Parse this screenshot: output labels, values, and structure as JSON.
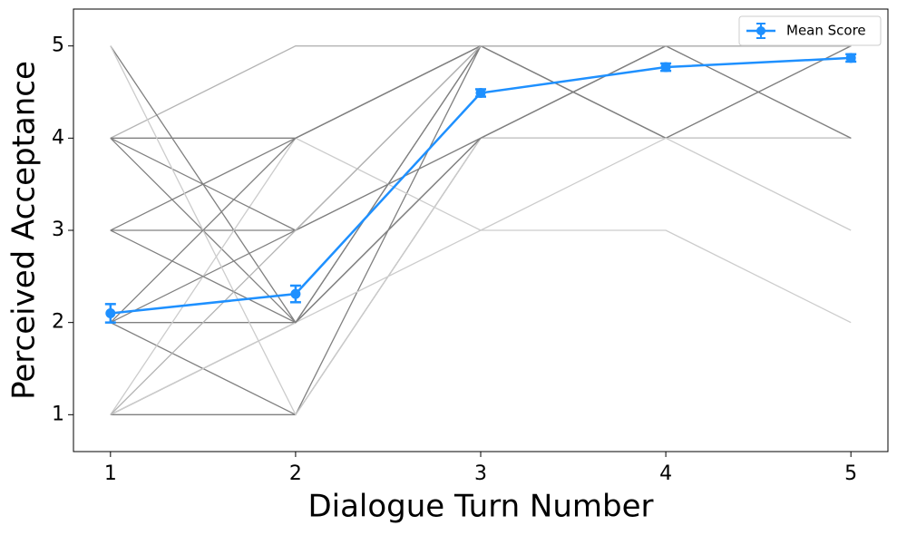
{
  "chart_data": {
    "type": "line",
    "xlabel": "Dialogue Turn Number",
    "ylabel": "Perceived Acceptance",
    "x": [
      1,
      2,
      3,
      4,
      5
    ],
    "xlim": [
      0.8,
      5.2
    ],
    "ylim": [
      0.6,
      5.4
    ],
    "xticks": [
      1,
      2,
      3,
      4,
      5
    ],
    "yticks": [
      1,
      2,
      3,
      4,
      5
    ],
    "grid": false,
    "legend": "upper right",
    "series": [
      {
        "name": "Mean Score",
        "color": "#1e90ff",
        "values": [
          2.1,
          2.31,
          4.49,
          4.77,
          4.87
        ],
        "errors": [
          0.1,
          0.09,
          0.04,
          0.04,
          0.04
        ]
      }
    ],
    "individual_lines": [
      {
        "color": "#b4b4b4",
        "values": [
          4,
          5,
          5,
          5,
          5
        ]
      },
      {
        "color": "#808080",
        "values": [
          5,
          2,
          5,
          5,
          5
        ]
      },
      {
        "color": "#808080",
        "values": [
          4,
          4,
          5,
          5,
          4
        ]
      },
      {
        "color": "#808080",
        "values": [
          3,
          4,
          5,
          5,
          5
        ]
      },
      {
        "color": "#808080",
        "values": [
          2,
          3,
          5,
          4,
          5
        ]
      },
      {
        "color": "#808080",
        "values": [
          1,
          2,
          4,
          4,
          4
        ]
      },
      {
        "color": "#808080",
        "values": [
          2,
          2,
          4,
          5,
          5
        ]
      },
      {
        "color": "#808080",
        "values": [
          3,
          3,
          4,
          4,
          4
        ]
      },
      {
        "color": "#808080",
        "values": [
          4,
          2,
          5,
          4,
          4
        ]
      },
      {
        "color": "#808080",
        "values": [
          1,
          1,
          5,
          5,
          5
        ]
      },
      {
        "color": "#808080",
        "values": [
          2,
          1,
          4,
          4,
          4
        ]
      },
      {
        "color": "#cccccc",
        "values": [
          1,
          4,
          3,
          3,
          2
        ]
      },
      {
        "color": "#808080",
        "values": [
          4,
          3,
          4,
          5,
          5
        ]
      },
      {
        "color": "#cccccc",
        "values": [
          5,
          1,
          4,
          4,
          4
        ]
      },
      {
        "color": "#808080",
        "values": [
          2,
          4,
          5,
          4,
          5
        ]
      },
      {
        "color": "#cccccc",
        "values": [
          1,
          2,
          3,
          4,
          3
        ]
      },
      {
        "color": "#808080",
        "values": [
          3,
          2,
          4,
          5,
          4
        ]
      },
      {
        "color": "#b4b4b4",
        "values": [
          1,
          3,
          5,
          5,
          5
        ]
      }
    ]
  }
}
